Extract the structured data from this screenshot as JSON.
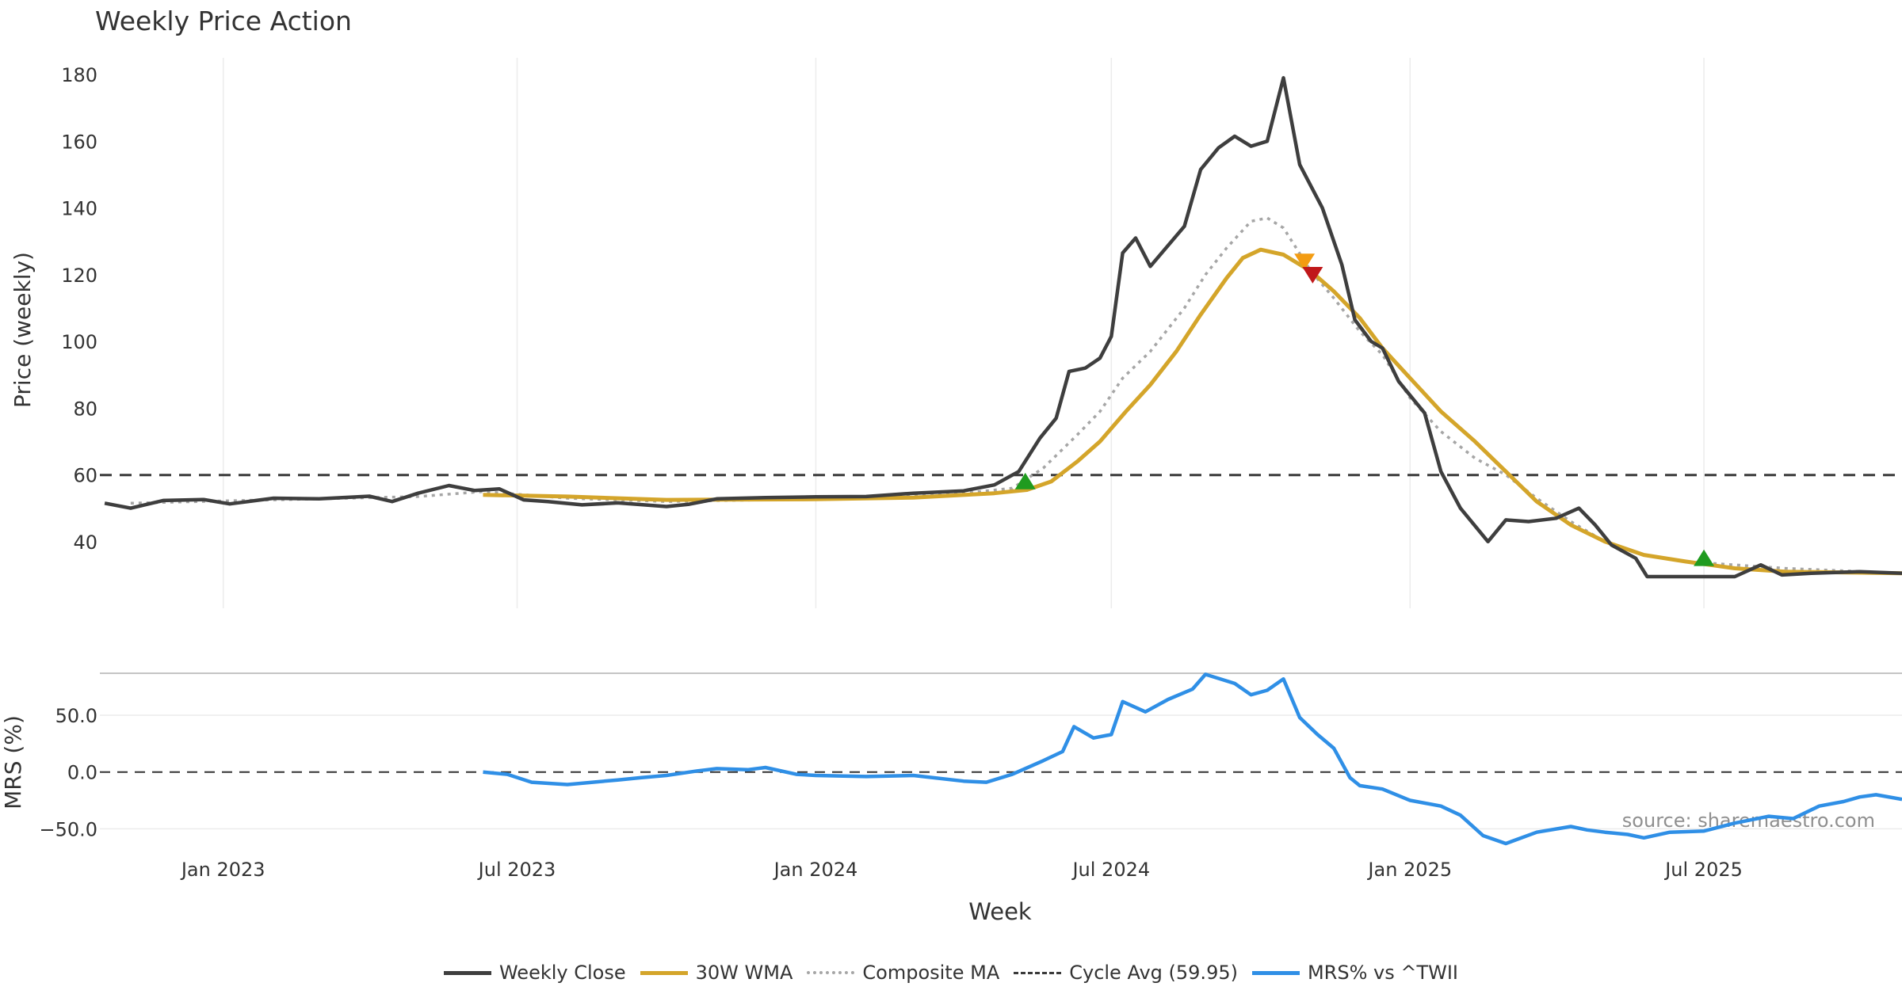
{
  "chart_data": [
    {
      "type": "line",
      "title": "Weekly Price Action",
      "xlabel": "",
      "ylabel": "Price (weekly)",
      "ylim": [
        20,
        185
      ],
      "yticks": [
        40,
        60,
        80,
        100,
        120,
        140,
        160,
        180
      ],
      "x_range": [
        "2022-10-17",
        "2025-10-31"
      ],
      "x_ticks": [
        {
          "date": "2023-01-01",
          "label": "Jan 2023"
        },
        {
          "date": "2023-07-01",
          "label": "Jul 2023"
        },
        {
          "date": "2024-01-01",
          "label": "Jan 2024"
        },
        {
          "date": "2024-07-01",
          "label": "Jul 2024"
        },
        {
          "date": "2025-01-01",
          "label": "Jan 2025"
        },
        {
          "date": "2025-07-01",
          "label": "Jul 2025"
        }
      ],
      "series": [
        {
          "name": "Weekly Close",
          "color": "#3e3e3e",
          "points": [
            [
              "2022-10-20",
              51.5
            ],
            [
              "2022-11-05",
              50
            ],
            [
              "2022-11-25",
              52.3
            ],
            [
              "2022-12-20",
              52.6
            ],
            [
              "2023-01-05",
              51.3
            ],
            [
              "2023-02-01",
              53
            ],
            [
              "2023-03-01",
              52.8
            ],
            [
              "2023-04-01",
              53.6
            ],
            [
              "2023-04-15",
              52
            ],
            [
              "2023-05-01",
              54.5
            ],
            [
              "2023-05-20",
              56.8
            ],
            [
              "2023-06-05",
              55.3
            ],
            [
              "2023-06-20",
              55.8
            ],
            [
              "2023-07-05",
              52.5
            ],
            [
              "2023-07-20",
              52
            ],
            [
              "2023-08-10",
              51
            ],
            [
              "2023-09-01",
              51.6
            ],
            [
              "2023-10-01",
              50.5
            ],
            [
              "2023-10-15",
              51.2
            ],
            [
              "2023-11-01",
              52.8
            ],
            [
              "2023-12-01",
              53.2
            ],
            [
              "2024-01-01",
              53.4
            ],
            [
              "2024-02-01",
              53.5
            ],
            [
              "2024-03-01",
              54.5
            ],
            [
              "2024-04-01",
              55.2
            ],
            [
              "2024-04-20",
              57
            ],
            [
              "2024-05-05",
              61
            ],
            [
              "2024-05-18",
              71
            ],
            [
              "2024-05-28",
              77
            ],
            [
              "2024-06-05",
              91
            ],
            [
              "2024-06-15",
              92
            ],
            [
              "2024-06-24",
              95
            ],
            [
              "2024-07-01",
              101.5
            ],
            [
              "2024-07-08",
              126.5
            ],
            [
              "2024-07-16",
              131
            ],
            [
              "2024-07-25",
              122.5
            ],
            [
              "2024-08-15",
              134.5
            ],
            [
              "2024-08-25",
              151.5
            ],
            [
              "2024-09-05",
              158
            ],
            [
              "2024-09-15",
              161.5
            ],
            [
              "2024-09-25",
              158.5
            ],
            [
              "2024-10-05",
              160
            ],
            [
              "2024-10-15",
              179
            ],
            [
              "2024-10-25",
              153
            ],
            [
              "2024-11-08",
              140
            ],
            [
              "2024-11-20",
              123
            ],
            [
              "2024-11-28",
              106.5
            ],
            [
              "2024-12-08",
              100
            ],
            [
              "2024-12-15",
              98
            ],
            [
              "2024-12-25",
              88
            ],
            [
              "2025-01-10",
              78.5
            ],
            [
              "2025-01-20",
              61
            ],
            [
              "2025-02-01",
              50
            ],
            [
              "2025-02-18",
              40
            ],
            [
              "2025-03-01",
              46.5
            ],
            [
              "2025-03-15",
              46
            ],
            [
              "2025-04-01",
              47
            ],
            [
              "2025-04-15",
              50
            ],
            [
              "2025-04-25",
              45
            ],
            [
              "2025-05-05",
              39
            ],
            [
              "2025-05-20",
              35
            ],
            [
              "2025-05-27",
              29.5
            ],
            [
              "2025-06-10",
              29.5
            ],
            [
              "2025-07-01",
              29.5
            ],
            [
              "2025-07-20",
              29.5
            ],
            [
              "2025-08-05",
              33
            ],
            [
              "2025-08-18",
              30
            ],
            [
              "2025-09-05",
              30.5
            ],
            [
              "2025-10-05",
              31
            ],
            [
              "2025-10-31",
              30.5
            ]
          ]
        },
        {
          "name": "30W WMA",
          "color": "#d4a52a",
          "points": [
            [
              "2023-06-10",
              54
            ],
            [
              "2023-08-01",
              53.5
            ],
            [
              "2023-10-01",
              52.5
            ],
            [
              "2024-01-01",
              52.7
            ],
            [
              "2024-03-01",
              53.2
            ],
            [
              "2024-04-20",
              54.5
            ],
            [
              "2024-05-10",
              55.5
            ],
            [
              "2024-05-25",
              58
            ],
            [
              "2024-06-10",
              64
            ],
            [
              "2024-06-24",
              70
            ],
            [
              "2024-07-10",
              79
            ],
            [
              "2024-07-25",
              87
            ],
            [
              "2024-08-10",
              97
            ],
            [
              "2024-08-25",
              108
            ],
            [
              "2024-09-10",
              119
            ],
            [
              "2024-09-20",
              125
            ],
            [
              "2024-10-01",
              127.5
            ],
            [
              "2024-10-15",
              126
            ],
            [
              "2024-11-01",
              121
            ],
            [
              "2024-11-15",
              115
            ],
            [
              "2024-12-01",
              107
            ],
            [
              "2024-12-15",
              98
            ],
            [
              "2025-01-01",
              89
            ],
            [
              "2025-01-20",
              79
            ],
            [
              "2025-02-10",
              70
            ],
            [
              "2025-03-01",
              61
            ],
            [
              "2025-03-20",
              52
            ],
            [
              "2025-04-10",
              45
            ],
            [
              "2025-05-01",
              40
            ],
            [
              "2025-05-25",
              36
            ],
            [
              "2025-06-20",
              34
            ],
            [
              "2025-07-20",
              32
            ],
            [
              "2025-08-20",
              31
            ],
            [
              "2025-10-31",
              30.5
            ]
          ]
        },
        {
          "name": "Composite MA",
          "color": "#a6a6a6",
          "points": [
            [
              "2022-11-05",
              51.5
            ],
            [
              "2023-01-01",
              52.2
            ],
            [
              "2023-03-01",
              52.8
            ],
            [
              "2023-05-01",
              53.5
            ],
            [
              "2023-06-10",
              55
            ],
            [
              "2023-08-01",
              53
            ],
            [
              "2023-10-01",
              52
            ],
            [
              "2024-01-01",
              52.8
            ],
            [
              "2024-04-01",
              54.5
            ],
            [
              "2024-05-01",
              56
            ],
            [
              "2024-05-20",
              62
            ],
            [
              "2024-06-10",
              72
            ],
            [
              "2024-06-24",
              79
            ],
            [
              "2024-07-08",
              89
            ],
            [
              "2024-07-25",
              97
            ],
            [
              "2024-08-15",
              110
            ],
            [
              "2024-08-28",
              120
            ],
            [
              "2024-09-10",
              128
            ],
            [
              "2024-09-25",
              136
            ],
            [
              "2024-10-05",
              137
            ],
            [
              "2024-10-15",
              134
            ],
            [
              "2024-11-01",
              121
            ],
            [
              "2024-11-15",
              113
            ],
            [
              "2024-12-01",
              103
            ],
            [
              "2024-12-15",
              96
            ],
            [
              "2025-01-01",
              83
            ],
            [
              "2025-01-20",
              73
            ],
            [
              "2025-02-10",
              65
            ],
            [
              "2025-03-01",
              60
            ],
            [
              "2025-03-20",
              53
            ],
            [
              "2025-04-10",
              46
            ],
            [
              "2025-05-01",
              40
            ],
            [
              "2025-05-25",
              36
            ],
            [
              "2025-06-20",
              34
            ],
            [
              "2025-07-20",
              33
            ],
            [
              "2025-08-20",
              32
            ],
            [
              "2025-10-31",
              30.5
            ]
          ]
        }
      ],
      "reference_line": {
        "name": "Cycle Avg (59.95)",
        "value": 59.95,
        "color": "#3a3a3a"
      },
      "markers": [
        {
          "date": "2024-05-09",
          "value": 58,
          "shape": "triangle-up",
          "color": "#1f9b1f"
        },
        {
          "date": "2024-10-28",
          "value": 124,
          "shape": "triangle-down",
          "color": "#f39c12"
        },
        {
          "date": "2024-11-02",
          "value": 120,
          "shape": "triangle-down",
          "color": "#c0181a"
        },
        {
          "date": "2025-07-01",
          "value": 35,
          "shape": "triangle-up",
          "color": "#1f9b1f"
        }
      ]
    },
    {
      "type": "line",
      "title": "",
      "xlabel": "Week",
      "ylabel": "MRS (%)",
      "ylim": [
        -63,
        87
      ],
      "yticks": [
        {
          "value": 50,
          "label": "50.0"
        },
        {
          "value": 0,
          "label": "0.0"
        },
        {
          "value": -50,
          "label": "−50.0"
        }
      ],
      "zero_line": true,
      "series": [
        {
          "name": "MRS% vs ^TWII",
          "color": "#2f8fe6",
          "points": [
            [
              "2023-06-10",
              0
            ],
            [
              "2023-06-25",
              -2
            ],
            [
              "2023-07-10",
              -9
            ],
            [
              "2023-08-01",
              -11
            ],
            [
              "2023-09-01",
              -7
            ],
            [
              "2023-09-15",
              -5
            ],
            [
              "2023-10-01",
              -3
            ],
            [
              "2023-10-20",
              1
            ],
            [
              "2023-11-01",
              3
            ],
            [
              "2023-11-20",
              2
            ],
            [
              "2023-12-01",
              4
            ],
            [
              "2023-12-20",
              -2
            ],
            [
              "2024-01-01",
              -3
            ],
            [
              "2024-02-01",
              -4
            ],
            [
              "2024-03-01",
              -3
            ],
            [
              "2024-04-01",
              -8
            ],
            [
              "2024-04-15",
              -9
            ],
            [
              "2024-05-01",
              -2
            ],
            [
              "2024-05-20",
              10
            ],
            [
              "2024-06-01",
              18
            ],
            [
              "2024-06-08",
              40
            ],
            [
              "2024-06-20",
              30
            ],
            [
              "2024-07-01",
              33
            ],
            [
              "2024-07-08",
              62
            ],
            [
              "2024-07-22",
              53
            ],
            [
              "2024-08-05",
              64
            ],
            [
              "2024-08-20",
              73
            ],
            [
              "2024-08-28",
              86
            ],
            [
              "2024-09-15",
              78
            ],
            [
              "2024-09-25",
              68
            ],
            [
              "2024-10-05",
              72
            ],
            [
              "2024-10-15",
              82
            ],
            [
              "2024-10-25",
              48
            ],
            [
              "2024-11-05",
              33
            ],
            [
              "2024-11-15",
              21
            ],
            [
              "2024-11-25",
              -5
            ],
            [
              "2024-12-01",
              -12
            ],
            [
              "2024-12-15",
              -15
            ],
            [
              "2025-01-01",
              -25
            ],
            [
              "2025-01-20",
              -30
            ],
            [
              "2025-02-01",
              -38
            ],
            [
              "2025-02-15",
              -56
            ],
            [
              "2025-03-01",
              -63
            ],
            [
              "2025-03-20",
              -53
            ],
            [
              "2025-04-10",
              -48
            ],
            [
              "2025-04-20",
              -51
            ],
            [
              "2025-05-01",
              -53
            ],
            [
              "2025-05-15",
              -55
            ],
            [
              "2025-05-25",
              -58
            ],
            [
              "2025-06-10",
              -53
            ],
            [
              "2025-07-01",
              -52
            ],
            [
              "2025-07-20",
              -45
            ],
            [
              "2025-08-10",
              -39
            ],
            [
              "2025-08-25",
              -41
            ],
            [
              "2025-09-10",
              -30
            ],
            [
              "2025-09-25",
              -26
            ],
            [
              "2025-10-05",
              -22
            ],
            [
              "2025-10-15",
              -20
            ],
            [
              "2025-10-31",
              -24
            ]
          ]
        }
      ],
      "watermark": "source: sharemaestro.com"
    }
  ],
  "legend": [
    {
      "label": "Weekly Close"
    },
    {
      "label": "30W WMA"
    },
    {
      "label": "Composite MA"
    },
    {
      "label": "Cycle Avg (59.95)"
    },
    {
      "label": "MRS% vs ^TWII"
    }
  ]
}
